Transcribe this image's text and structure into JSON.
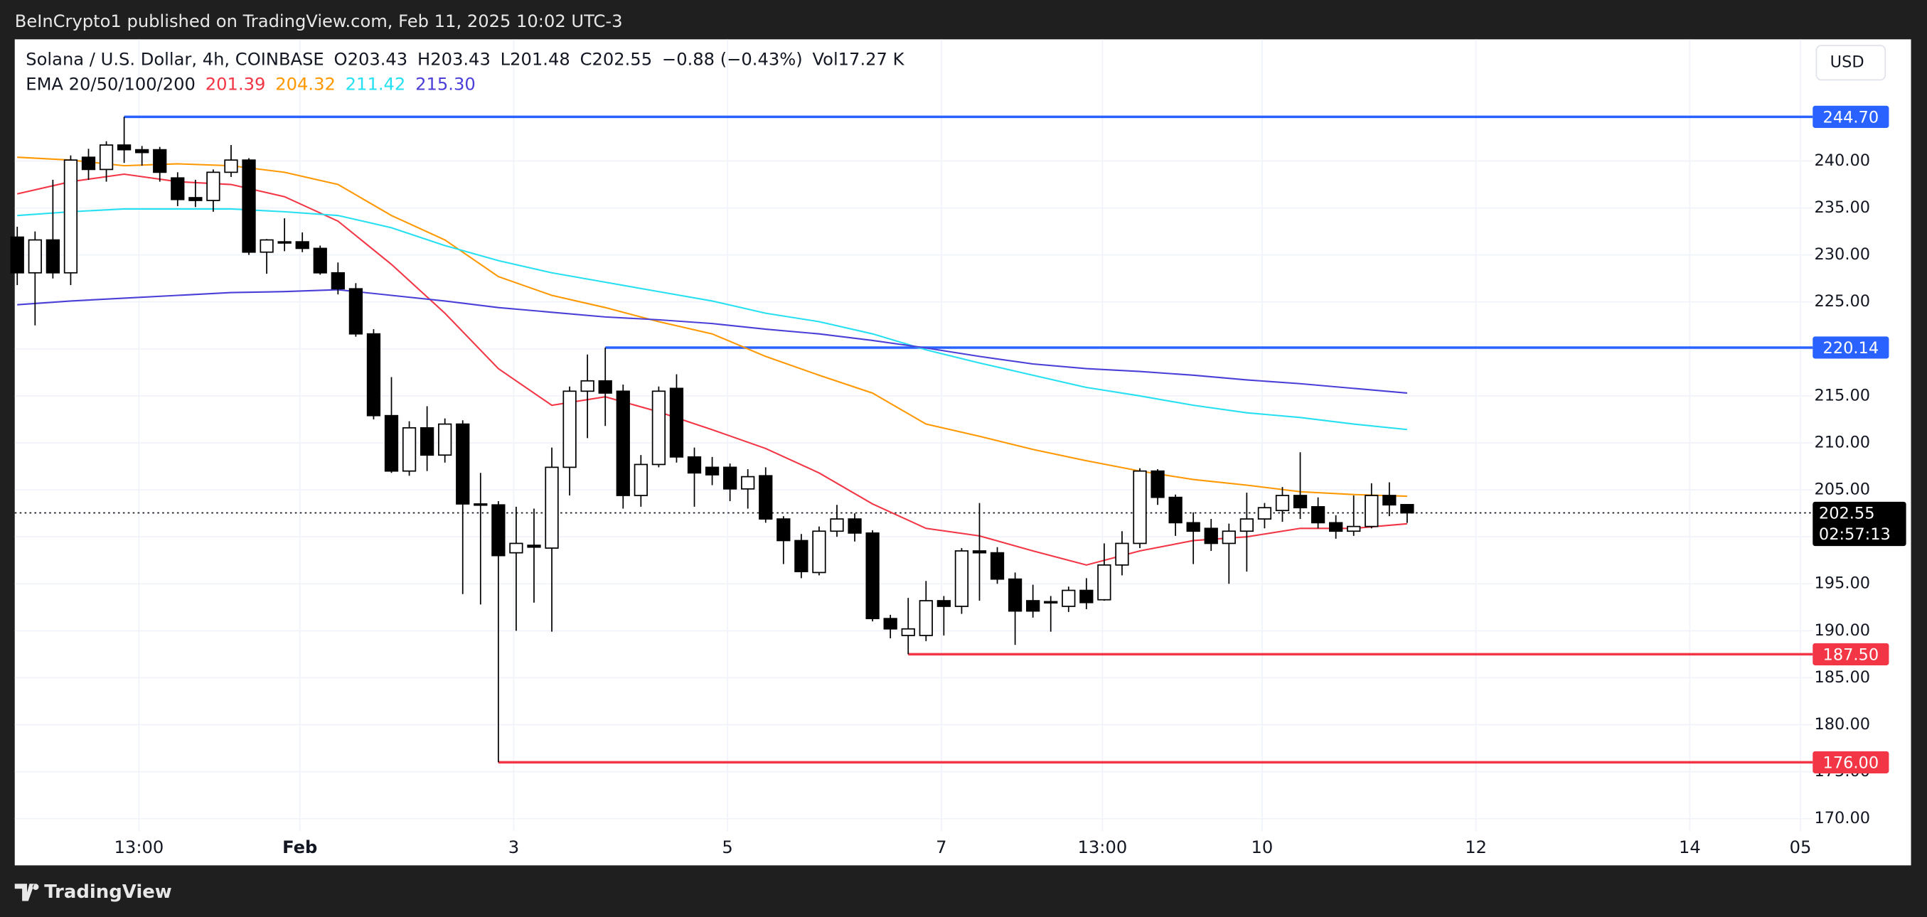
{
  "header": {
    "published": "BeInCrypto1 published on TradingView.com, Feb 11, 2025 10:02 UTC-3"
  },
  "footer": {
    "brand": "TradingView"
  },
  "chart_data": {
    "type": "candlestick",
    "title": "Solana / U.S. Dollar, 4h, COINBASE",
    "currency": "USD",
    "ohlc_legend": [
      {
        "key": "O",
        "value": "203.43"
      },
      {
        "key": "H",
        "value": "203.43"
      },
      {
        "key": "L",
        "value": "201.48"
      },
      {
        "key": "C",
        "value": "202.55"
      },
      {
        "key": "",
        "value": "−0.88 (−0.43%)"
      },
      {
        "key": "Vol",
        "value": "17.27 K"
      }
    ],
    "ema_label": "EMA 20/50/100/200",
    "ohlc": [
      [
        231.9,
        233.0,
        226.8,
        228.1
      ],
      [
        228.1,
        232.5,
        222.5,
        231.6
      ],
      [
        231.6,
        238.0,
        227.5,
        228.1
      ],
      [
        228.1,
        240.6,
        226.8,
        240.1
      ],
      [
        240.4,
        241.3,
        238.0,
        239.1
      ],
      [
        239.1,
        242.1,
        237.8,
        241.7
      ],
      [
        241.7,
        244.7,
        239.8,
        241.2
      ],
      [
        241.2,
        241.6,
        239.5,
        240.9
      ],
      [
        241.2,
        241.5,
        237.8,
        238.8
      ],
      [
        238.2,
        238.8,
        235.2,
        235.9
      ],
      [
        236.1,
        238.0,
        235.1,
        235.8
      ],
      [
        235.8,
        239.1,
        234.6,
        238.8
      ],
      [
        238.8,
        241.7,
        238.3,
        240.1
      ],
      [
        240.1,
        240.3,
        230.0,
        230.3
      ],
      [
        230.3,
        231.7,
        228.0,
        231.6
      ],
      [
        231.4,
        233.9,
        230.4,
        231.3
      ],
      [
        231.4,
        232.4,
        230.3,
        230.7
      ],
      [
        230.7,
        231.0,
        227.9,
        228.1
      ],
      [
        228.1,
        229.2,
        225.8,
        226.4
      ],
      [
        226.4,
        227.0,
        221.3,
        221.6
      ],
      [
        221.6,
        222.1,
        212.5,
        212.9
      ],
      [
        212.9,
        217.0,
        206.8,
        207.0
      ],
      [
        207.0,
        212.3,
        206.5,
        211.6
      ],
      [
        211.6,
        213.9,
        207.0,
        208.7
      ],
      [
        208.7,
        212.6,
        207.9,
        212.0
      ],
      [
        212.0,
        212.4,
        193.9,
        203.5
      ],
      [
        203.5,
        206.8,
        192.8,
        203.4
      ],
      [
        203.4,
        203.8,
        176.0,
        198.0
      ],
      [
        198.3,
        203.2,
        190.0,
        199.3
      ],
      [
        199.1,
        203.0,
        193.0,
        198.9
      ],
      [
        198.8,
        209.5,
        189.9,
        207.4
      ],
      [
        207.4,
        216.0,
        204.4,
        215.5
      ],
      [
        215.5,
        219.4,
        210.5,
        216.6
      ],
      [
        216.6,
        220.14,
        211.8,
        215.3
      ],
      [
        215.5,
        216.2,
        203.0,
        204.4
      ],
      [
        204.4,
        208.7,
        203.2,
        207.7
      ],
      [
        207.7,
        216.0,
        207.4,
        215.5
      ],
      [
        215.8,
        217.3,
        207.9,
        208.5
      ],
      [
        208.5,
        209.5,
        203.2,
        206.8
      ],
      [
        207.4,
        208.5,
        205.5,
        206.6
      ],
      [
        207.4,
        207.8,
        203.8,
        205.1
      ],
      [
        205.1,
        207.2,
        203.0,
        206.4
      ],
      [
        206.5,
        207.4,
        201.5,
        201.9
      ],
      [
        201.9,
        202.2,
        197.1,
        199.6
      ],
      [
        199.6,
        200.3,
        195.6,
        196.3
      ],
      [
        196.2,
        201.1,
        195.9,
        200.6
      ],
      [
        200.6,
        203.4,
        200.0,
        201.9
      ],
      [
        201.9,
        202.5,
        199.5,
        200.4
      ],
      [
        200.4,
        200.7,
        191.0,
        191.3
      ],
      [
        191.3,
        191.7,
        189.2,
        190.2
      ],
      [
        189.5,
        193.5,
        187.5,
        190.2
      ],
      [
        189.5,
        195.3,
        188.9,
        193.2
      ],
      [
        193.2,
        193.7,
        189.5,
        192.6
      ],
      [
        192.6,
        198.8,
        191.8,
        198.5
      ],
      [
        198.5,
        203.6,
        193.2,
        198.3
      ],
      [
        198.3,
        198.9,
        195.0,
        195.5
      ],
      [
        195.5,
        196.2,
        188.5,
        192.1
      ],
      [
        193.2,
        194.9,
        191.4,
        192.1
      ],
      [
        193.1,
        193.7,
        189.9,
        193.0
      ],
      [
        192.6,
        194.7,
        192.0,
        194.3
      ],
      [
        194.3,
        195.6,
        192.3,
        193.0
      ],
      [
        193.3,
        199.3,
        193.2,
        197.0
      ],
      [
        197.0,
        200.6,
        195.9,
        199.3
      ],
      [
        199.3,
        207.3,
        198.8,
        207.0
      ],
      [
        207.0,
        207.2,
        203.4,
        204.2
      ],
      [
        204.2,
        204.5,
        200.1,
        201.5
      ],
      [
        201.5,
        202.6,
        197.1,
        200.6
      ],
      [
        200.9,
        201.9,
        198.5,
        199.3
      ],
      [
        199.3,
        201.4,
        195.0,
        200.6
      ],
      [
        200.6,
        204.7,
        196.3,
        201.9
      ],
      [
        201.9,
        203.6,
        200.9,
        203.1
      ],
      [
        202.8,
        205.3,
        201.6,
        204.4
      ],
      [
        204.4,
        209.0,
        201.9,
        203.1
      ],
      [
        203.2,
        204.2,
        200.9,
        201.5
      ],
      [
        201.5,
        202.3,
        199.8,
        200.6
      ],
      [
        200.6,
        204.4,
        200.1,
        201.1
      ],
      [
        201.1,
        205.7,
        200.9,
        204.4
      ],
      [
        204.4,
        205.8,
        202.2,
        203.4
      ],
      [
        203.43,
        203.43,
        201.48,
        202.55
      ]
    ],
    "ema_x": [
      0,
      3,
      6,
      9,
      12,
      15,
      18,
      21,
      24,
      27,
      30,
      33,
      36,
      39,
      42,
      45,
      48,
      51,
      54,
      57,
      60,
      63,
      66,
      69,
      72,
      75,
      78
    ],
    "series": [
      {
        "color": "#f23645",
        "legend_value": "201.39",
        "values": [
          236.5,
          237.8,
          238.6,
          237.8,
          237.5,
          236.2,
          233.6,
          229.0,
          223.8,
          217.9,
          214.0,
          214.9,
          213.3,
          211.4,
          209.4,
          206.8,
          203.5,
          200.9,
          200.1,
          198.5,
          197.0,
          198.5,
          199.6,
          200.0,
          200.9,
          200.9,
          201.39
        ]
      },
      {
        "color": "#ff9800",
        "legend_value": "204.32",
        "values": [
          240.4,
          240.1,
          239.5,
          239.7,
          239.5,
          238.8,
          237.5,
          234.2,
          231.6,
          227.7,
          225.7,
          224.4,
          222.9,
          221.6,
          219.2,
          217.2,
          215.3,
          212.0,
          210.7,
          209.3,
          208.1,
          207.0,
          206.1,
          205.5,
          204.8,
          204.5,
          204.32
        ]
      },
      {
        "color": "#26e0f2",
        "legend_value": "211.42",
        "values": [
          234.2,
          234.6,
          234.9,
          234.9,
          234.9,
          234.6,
          234.2,
          232.9,
          231.0,
          229.4,
          228.1,
          227.1,
          226.1,
          225.1,
          223.8,
          222.9,
          221.6,
          219.9,
          218.5,
          217.2,
          215.9,
          215.0,
          214.0,
          213.2,
          212.7,
          212.0,
          211.42
        ]
      },
      {
        "color": "#4b3fd8",
        "legend_value": "215.30",
        "values": [
          224.7,
          225.1,
          225.4,
          225.7,
          226.0,
          226.1,
          226.3,
          225.7,
          225.1,
          224.4,
          223.9,
          223.4,
          223.1,
          222.7,
          222.1,
          221.6,
          220.9,
          220.1,
          219.2,
          218.4,
          217.9,
          217.6,
          217.2,
          216.7,
          216.3,
          215.8,
          215.3
        ]
      }
    ],
    "levels": [
      {
        "value": 244.7,
        "label": "244.70",
        "color": "#2962ff",
        "from": 6
      },
      {
        "value": 220.14,
        "label": "220.14",
        "color": "#2962ff",
        "from": 33
      },
      {
        "value": 187.5,
        "label": "187.50",
        "color": "#f23645",
        "from": 50
      },
      {
        "value": 176.0,
        "label": "176.00",
        "color": "#f23645",
        "from": 27
      }
    ],
    "last_price": {
      "value": 202.55,
      "label": "202.55",
      "countdown": "02:57:13"
    },
    "xlim": [
      -0.14,
      100.76
    ],
    "xticks": [
      {
        "value": 6.83,
        "label": "13:00"
      },
      {
        "value": 15.86,
        "label": "Feb"
      },
      {
        "value": 27.86,
        "label": "3"
      },
      {
        "value": 39.86,
        "label": "5"
      },
      {
        "value": 51.86,
        "label": "7"
      },
      {
        "value": 60.9,
        "label": "13:00"
      },
      {
        "value": 69.86,
        "label": "10"
      },
      {
        "value": 81.86,
        "label": "12"
      },
      {
        "value": 93.86,
        "label": "14"
      },
      {
        "value": 100.07,
        "label": "05"
      }
    ],
    "ylim": [
      165.03,
      252.95
    ],
    "yticks": [
      {
        "value": 170,
        "label": "170.00"
      },
      {
        "value": 175,
        "label": "175.00"
      },
      {
        "value": 180,
        "label": "180.00"
      },
      {
        "value": 185,
        "label": "185.00"
      },
      {
        "value": 190,
        "label": "190.00"
      },
      {
        "value": 195,
        "label": "195.00"
      },
      {
        "value": 200,
        "label": "200.00"
      },
      {
        "value": 205,
        "label": "205.00"
      },
      {
        "value": 210,
        "label": "210.00"
      },
      {
        "value": 215,
        "label": "215.00"
      },
      {
        "value": 220,
        "label": "220.00"
      },
      {
        "value": 225,
        "label": "225.00"
      },
      {
        "value": 230,
        "label": "230.00"
      },
      {
        "value": 235,
        "label": "235.00"
      },
      {
        "value": 240,
        "label": "240.00"
      }
    ],
    "grid": true
  }
}
